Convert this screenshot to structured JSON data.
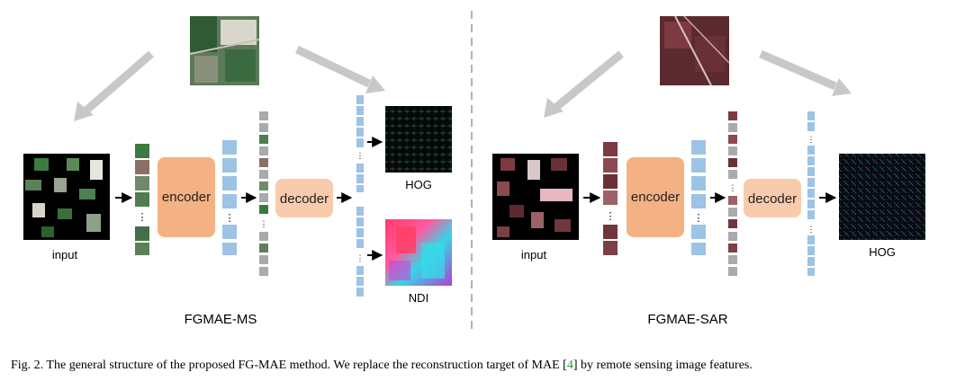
{
  "panels": {
    "ms": {
      "name": "FGMAE-MS",
      "input_label": "input",
      "encoder_label": "encoder",
      "decoder_label": "decoder",
      "targets": [
        "HOG",
        "NDI"
      ]
    },
    "sar": {
      "name": "FGMAE-SAR",
      "input_label": "input",
      "encoder_label": "encoder",
      "decoder_label": "decoder",
      "targets": [
        "HOG"
      ]
    }
  },
  "caption": {
    "prefix": "Fig. 2.   The general structure of the proposed FG-MAE method. We replace the reconstruction target of MAE [",
    "ref": "4",
    "suffix": "] by remote sensing image features."
  },
  "colors": {
    "encoder": "#f4b183",
    "decoder": "#f8cbad",
    "token": "#9dc3e6",
    "arrow_gray": "#c8c8c8",
    "separator": "#999999",
    "ref_link": "#2ca02c"
  },
  "icons": [
    "arrow-right-icon",
    "arrow-gray-icon"
  ]
}
